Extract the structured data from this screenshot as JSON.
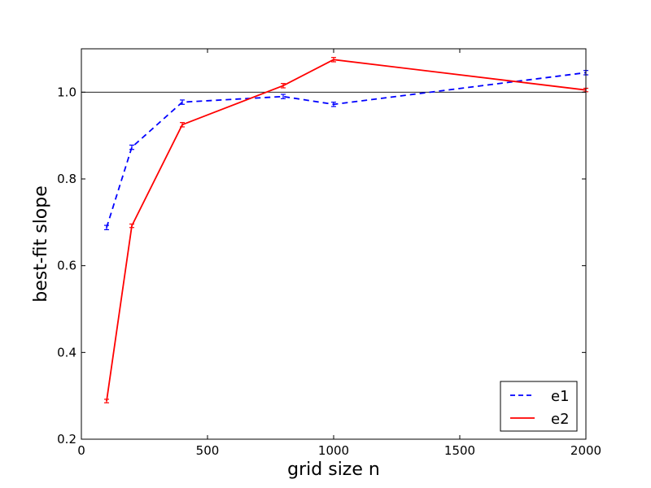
{
  "chart_data": {
    "type": "line",
    "title": "",
    "xlabel": "grid size n",
    "ylabel": "best-fit slope",
    "xlim": [
      0,
      2000
    ],
    "ylim": [
      0.2,
      1.1
    ],
    "x_ticks": [
      0,
      500,
      1000,
      1500,
      2000
    ],
    "x_tick_labels": [
      "0",
      "500",
      "1000",
      "1500",
      "2000"
    ],
    "y_ticks": [
      0.2,
      0.4,
      0.6,
      0.8,
      1.0
    ],
    "y_tick_labels": [
      "0.2",
      "0.4",
      "0.6",
      "0.8",
      "1.0"
    ],
    "reference_line": 1.0,
    "legend_position": "lower-right",
    "grid": false,
    "series": [
      {
        "name": "e1",
        "color": "#0000ff",
        "line_style": "dashed",
        "x": [
          100,
          200,
          400,
          800,
          1000,
          2000
        ],
        "y": [
          0.688,
          0.873,
          0.977,
          0.99,
          0.972,
          1.045
        ],
        "error": [
          0.005,
          0.005,
          0.005,
          0.005,
          0.005,
          0.005
        ]
      },
      {
        "name": "e2",
        "color": "#ff0000",
        "line_style": "solid",
        "x": [
          100,
          200,
          400,
          800,
          1000,
          2000
        ],
        "y": [
          0.288,
          0.692,
          0.925,
          1.015,
          1.075,
          1.005
        ],
        "error": [
          0.004,
          0.004,
          0.005,
          0.005,
          0.005,
          0.004
        ]
      }
    ]
  }
}
